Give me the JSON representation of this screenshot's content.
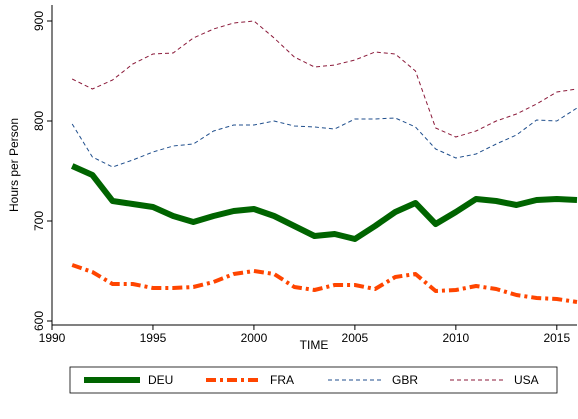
{
  "chart_data": {
    "type": "line",
    "x_label": "TIME",
    "y_label": "Hours per Person",
    "x": [
      1991,
      1992,
      1993,
      1994,
      1995,
      1996,
      1997,
      1998,
      1999,
      2000,
      2001,
      2002,
      2003,
      2004,
      2005,
      2006,
      2007,
      2008,
      2009,
      2010,
      2011,
      2012,
      2013,
      2014,
      2015,
      2016
    ],
    "series": [
      {
        "name": "DEU",
        "color": "#006400",
        "values": [
          755,
          746,
          720,
          717,
          714,
          705,
          699,
          705,
          710,
          712,
          705,
          695,
          685,
          687,
          682,
          695,
          709,
          718,
          697,
          709,
          722,
          720,
          716,
          721,
          722,
          721
        ]
      },
      {
        "name": "FRA",
        "color": "#ff4500",
        "values": [
          656,
          649,
          637,
          637,
          633,
          633,
          634,
          639,
          647,
          650,
          647,
          634,
          631,
          636,
          636,
          632,
          644,
          647,
          630,
          631,
          635,
          632,
          626,
          623,
          622,
          619
        ]
      },
      {
        "name": "GBR",
        "color": "#1f4e8c",
        "values": [
          797,
          764,
          754,
          761,
          769,
          775,
          777,
          790,
          796,
          796,
          800,
          795,
          794,
          792,
          802,
          802,
          803,
          794,
          772,
          763,
          767,
          777,
          786,
          801,
          800,
          813
        ]
      },
      {
        "name": "USA",
        "color": "#8b1a3a",
        "values": [
          842,
          832,
          841,
          857,
          867,
          868,
          883,
          892,
          898,
          900,
          883,
          864,
          854,
          856,
          861,
          869,
          867,
          850,
          793,
          784,
          790,
          800,
          807,
          817,
          829,
          832
        ]
      }
    ],
    "xlim": [
      1990,
      2016
    ],
    "xticks": [
      1990,
      1995,
      2000,
      2005,
      2010,
      2015
    ],
    "ylim": [
      596,
      916
    ],
    "yticks": [
      600,
      700,
      800,
      900
    ],
    "legend": "bottom"
  }
}
